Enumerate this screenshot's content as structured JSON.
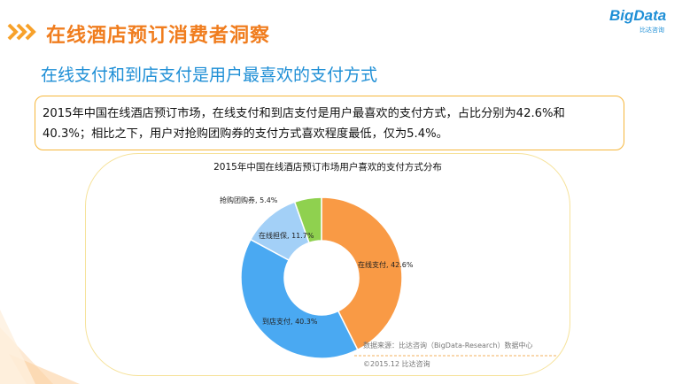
{
  "header": {
    "title": "在线酒店预订消费者洞察",
    "logo_main": "BigData",
    "logo_sub": "比达咨询"
  },
  "subtitle": "在线支付和到店支付是用户最喜欢的支付方式",
  "summary": {
    "line1": "2015年中国在线酒店预订市场，在线支付和到店支付是用户最喜欢的支付方式，占比分别为42.6%和",
    "line2": "40.3%；相比之下，用户对抢购团购券的支付方式喜欢程度最低，仅为5.4%。"
  },
  "chart_data": {
    "type": "pie",
    "title": "2015年中国在线酒店预订市场用户喜欢的支付方式分布",
    "slices": [
      {
        "label": "在线支付",
        "value": 42.6,
        "display": "在线支付, 42.6%",
        "color": "#f99a45"
      },
      {
        "label": "到店支付",
        "value": 40.3,
        "display": "到店支付, 40.3%",
        "color": "#4aa9f2"
      },
      {
        "label": "在线担保",
        "value": 11.7,
        "display": "在线担保, 11.7%",
        "color": "#a3d0f7"
      },
      {
        "label": "抢购团购券",
        "value": 5.4,
        "display": "抢购团购券, 5.4%",
        "color": "#8fd14f"
      }
    ],
    "donut": true,
    "legend": "none"
  },
  "source": "数据来源：比达咨询（BigData-Research）数据中心",
  "copyright": "©2015.12  比达咨询"
}
